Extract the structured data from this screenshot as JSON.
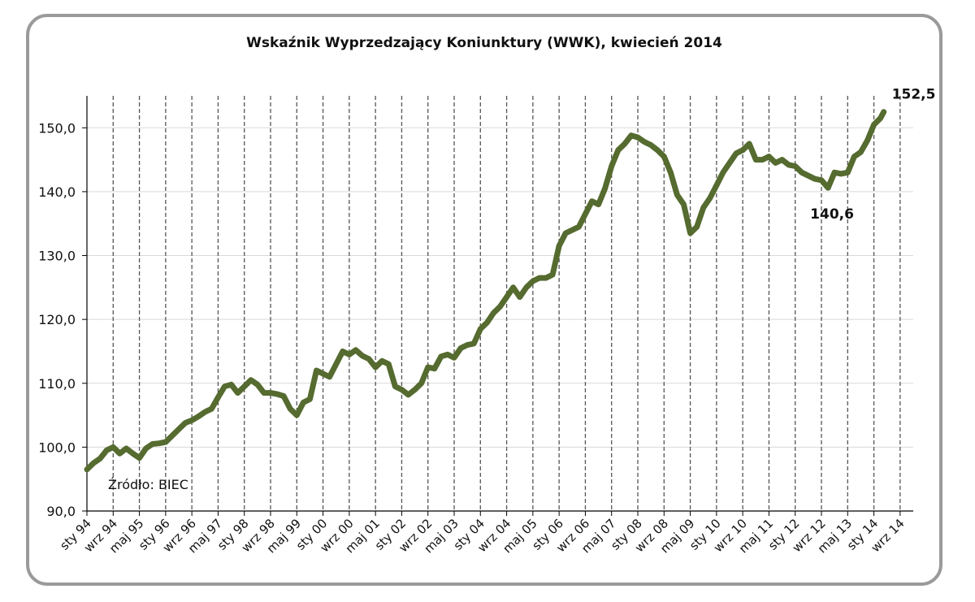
{
  "chart_data": {
    "type": "line",
    "title": "Wskaźnik Wyprzedzający Koniunktury (WWK), kwiecień 2014",
    "source_note": "Źródło: BIEC",
    "ylim": [
      90,
      155
    ],
    "y_ticks": [
      "90,0",
      "100,0",
      "110,0",
      "120,0",
      "130,0",
      "140,0",
      "150,0"
    ],
    "y_tick_values": [
      90,
      100,
      110,
      120,
      130,
      140,
      150
    ],
    "x_range": [
      "1994-01",
      "2014-12"
    ],
    "x_ticks": [
      "sty 94",
      "wrz 94",
      "maj 95",
      "sty 96",
      "wrz 96",
      "maj 97",
      "sty 98",
      "wrz 98",
      "maj 99",
      "sty 00",
      "wrz 00",
      "maj 01",
      "sty 02",
      "wrz 02",
      "maj 03",
      "sty 04",
      "wrz 04",
      "maj 05",
      "sty 06",
      "wrz 06",
      "maj 07",
      "sty 08",
      "wrz 08",
      "maj 09",
      "sty 10",
      "wrz 10",
      "maj 11",
      "sty 12",
      "wrz 12",
      "maj 13",
      "sty 14",
      "wrz 14"
    ],
    "x_tick_dates": [
      "1994-01",
      "1994-09",
      "1995-05",
      "1996-01",
      "1996-09",
      "1997-05",
      "1998-01",
      "1998-09",
      "1999-05",
      "2000-01",
      "2000-09",
      "2001-05",
      "2002-01",
      "2002-09",
      "2003-05",
      "2004-01",
      "2004-09",
      "2005-05",
      "2006-01",
      "2006-09",
      "2007-05",
      "2008-01",
      "2008-09",
      "2009-05",
      "2010-01",
      "2010-09",
      "2011-05",
      "2012-01",
      "2012-09",
      "2013-05",
      "2014-01",
      "2014-09"
    ],
    "grid": "vertical dashed at each x tick, horizontal solid at each y tick",
    "series": [
      {
        "color": "#556b2f",
        "points": [
          [
            "1994-01",
            96.5
          ],
          [
            "1994-03",
            97.5
          ],
          [
            "1994-05",
            98.2
          ],
          [
            "1994-07",
            99.5
          ],
          [
            "1994-09",
            100.0
          ],
          [
            "1994-11",
            99.0
          ],
          [
            "1995-01",
            99.8
          ],
          [
            "1995-03",
            99.0
          ],
          [
            "1995-05",
            98.3
          ],
          [
            "1995-07",
            99.8
          ],
          [
            "1995-09",
            100.5
          ],
          [
            "1995-11",
            100.6
          ],
          [
            "1996-01",
            100.8
          ],
          [
            "1996-03",
            101.8
          ],
          [
            "1996-05",
            102.8
          ],
          [
            "1996-07",
            103.8
          ],
          [
            "1996-09",
            104.2
          ],
          [
            "1996-11",
            104.8
          ],
          [
            "1997-01",
            105.5
          ],
          [
            "1997-03",
            106.0
          ],
          [
            "1997-05",
            107.8
          ],
          [
            "1997-07",
            109.5
          ],
          [
            "1997-09",
            109.8
          ],
          [
            "1997-11",
            108.5
          ],
          [
            "1998-01",
            109.5
          ],
          [
            "1998-03",
            110.5
          ],
          [
            "1998-05",
            109.8
          ],
          [
            "1998-07",
            108.5
          ],
          [
            "1998-09",
            108.5
          ],
          [
            "1998-11",
            108.3
          ],
          [
            "1999-01",
            108.0
          ],
          [
            "1999-03",
            106.0
          ],
          [
            "1999-05",
            105.0
          ],
          [
            "1999-07",
            107.0
          ],
          [
            "1999-09",
            107.5
          ],
          [
            "1999-11",
            112.0
          ],
          [
            "2000-01",
            111.5
          ],
          [
            "2000-03",
            111.0
          ],
          [
            "2000-05",
            113.0
          ],
          [
            "2000-07",
            115.0
          ],
          [
            "2000-09",
            114.5
          ],
          [
            "2000-11",
            115.2
          ],
          [
            "2001-01",
            114.3
          ],
          [
            "2001-03",
            113.8
          ],
          [
            "2001-05",
            112.5
          ],
          [
            "2001-07",
            113.5
          ],
          [
            "2001-09",
            113.0
          ],
          [
            "2001-11",
            109.5
          ],
          [
            "2002-01",
            109.0
          ],
          [
            "2002-03",
            108.2
          ],
          [
            "2002-05",
            109.0
          ],
          [
            "2002-07",
            110.0
          ],
          [
            "2002-09",
            112.5
          ],
          [
            "2002-11",
            112.3
          ],
          [
            "2003-01",
            114.2
          ],
          [
            "2003-03",
            114.5
          ],
          [
            "2003-05",
            114.0
          ],
          [
            "2003-07",
            115.5
          ],
          [
            "2003-09",
            116.0
          ],
          [
            "2003-11",
            116.2
          ],
          [
            "2004-01",
            118.5
          ],
          [
            "2004-03",
            119.5
          ],
          [
            "2004-05",
            121.0
          ],
          [
            "2004-07",
            122.0
          ],
          [
            "2004-09",
            123.5
          ],
          [
            "2004-11",
            125.0
          ],
          [
            "2005-01",
            123.5
          ],
          [
            "2005-03",
            125.0
          ],
          [
            "2005-05",
            126.0
          ],
          [
            "2005-07",
            126.5
          ],
          [
            "2005-09",
            126.5
          ],
          [
            "2005-11",
            127.0
          ],
          [
            "2006-01",
            131.5
          ],
          [
            "2006-03",
            133.5
          ],
          [
            "2006-05",
            134.0
          ],
          [
            "2006-07",
            134.5
          ],
          [
            "2006-09",
            136.5
          ],
          [
            "2006-11",
            138.5
          ],
          [
            "2007-01",
            138.0
          ],
          [
            "2007-03",
            140.5
          ],
          [
            "2007-05",
            144.0
          ],
          [
            "2007-07",
            146.5
          ],
          [
            "2007-09",
            147.5
          ],
          [
            "2007-11",
            148.8
          ],
          [
            "2008-01",
            148.5
          ],
          [
            "2008-03",
            147.8
          ],
          [
            "2008-05",
            147.3
          ],
          [
            "2008-07",
            146.5
          ],
          [
            "2008-09",
            145.5
          ],
          [
            "2008-11",
            143.0
          ],
          [
            "2009-01",
            139.5
          ],
          [
            "2009-03",
            138.0
          ],
          [
            "2009-05",
            133.5
          ],
          [
            "2009-07",
            134.5
          ],
          [
            "2009-09",
            137.5
          ],
          [
            "2009-11",
            139.0
          ],
          [
            "2010-01",
            141.0
          ],
          [
            "2010-03",
            143.0
          ],
          [
            "2010-05",
            144.5
          ],
          [
            "2010-07",
            146.0
          ],
          [
            "2010-09",
            146.5
          ],
          [
            "2010-11",
            147.5
          ],
          [
            "2011-01",
            145.0
          ],
          [
            "2011-03",
            145.0
          ],
          [
            "2011-05",
            145.5
          ],
          [
            "2011-07",
            144.5
          ],
          [
            "2011-09",
            145.0
          ],
          [
            "2011-11",
            144.2
          ],
          [
            "2012-01",
            144.0
          ],
          [
            "2012-03",
            143.0
          ],
          [
            "2012-05",
            142.5
          ],
          [
            "2012-07",
            142.0
          ],
          [
            "2012-09",
            141.8
          ],
          [
            "2012-11",
            140.6
          ],
          [
            "2013-01",
            143.0
          ],
          [
            "2013-03",
            142.8
          ],
          [
            "2013-05",
            143.0
          ],
          [
            "2013-07",
            145.5
          ],
          [
            "2013-09",
            146.2
          ],
          [
            "2013-11",
            148.0
          ],
          [
            "2014-01",
            150.5
          ],
          [
            "2014-03",
            151.5
          ],
          [
            "2014-04",
            152.5
          ]
        ]
      }
    ],
    "annotations": [
      {
        "text": "152,5",
        "date": "2014-04",
        "value": 152.5
      },
      {
        "text": "140,6",
        "date": "2012-11",
        "value": 140.6
      }
    ]
  }
}
